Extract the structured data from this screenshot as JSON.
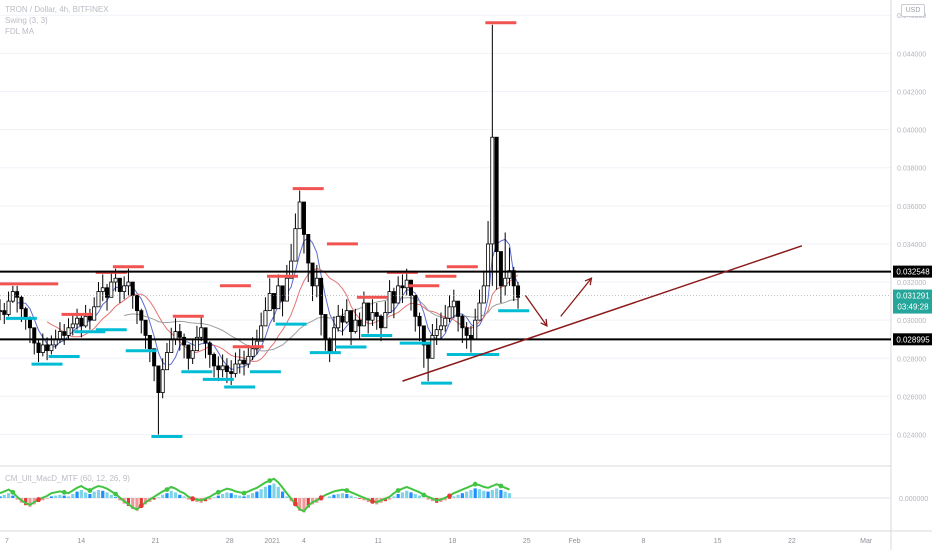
{
  "header": {
    "symbol_line": "TRON / Dollar, 4h, BITFINEX",
    "indicator_1": "Swing (3, 3)",
    "indicator_2": "FDL MA",
    "currency_button": "USD"
  },
  "oscillator": {
    "label": "CM_Ult_MacD_MTF (60, 12, 26, 9)",
    "zero_label": "0.000000"
  },
  "colors": {
    "candles": "#000000",
    "resistance_ticks": "#f05350",
    "support_ticks": "#00bcd4",
    "horizontal_levels": "#000000",
    "trendline": "#8b1a1a",
    "ma_short": "#5b6bd0",
    "ma_mid": "#e57373",
    "ma_long": "#9e9e9e",
    "current_price_bg": "#26a69a"
  },
  "chart_data": {
    "type": "candlestick",
    "x_ticks": [
      "7",
      "14",
      "21",
      "28",
      "2021",
      "4",
      "11",
      "18",
      "25",
      "Feb",
      "8",
      "15",
      "22",
      "Mar"
    ],
    "y_ticks": [
      0.024,
      0.026,
      0.028,
      0.03,
      0.032,
      0.034,
      0.036,
      0.038,
      0.04,
      0.042,
      0.044,
      0.046
    ],
    "y_tick_labels": [
      "0.024000",
      "0.026000",
      "0.028000",
      "0.030000",
      "0.032000",
      "0.034000",
      "0.036000",
      "0.038000",
      "0.040000",
      "0.042000",
      "0.044000",
      "0.046000"
    ],
    "ylim": [
      0.0224,
      0.0468
    ],
    "horizontal_levels": [
      {
        "price": 0.032548,
        "label": "0.032548"
      },
      {
        "price": 0.028995,
        "label": "0.028995"
      }
    ],
    "current_price": {
      "price": 0.031291,
      "label": "0.031291",
      "countdown": "03:49:28"
    },
    "closes": [
      0.0305,
      0.0303,
      0.031,
      0.0315,
      0.0312,
      0.0306,
      0.0301,
      0.0296,
      0.0288,
      0.0283,
      0.0287,
      0.0284,
      0.0287,
      0.029,
      0.0294,
      0.0292,
      0.0296,
      0.0298,
      0.0301,
      0.0297,
      0.0302,
      0.03,
      0.0307,
      0.0315,
      0.0317,
      0.0312,
      0.032,
      0.0322,
      0.0315,
      0.0318,
      0.032,
      0.0313,
      0.0305,
      0.03,
      0.0292,
      0.0285,
      0.0276,
      0.0262,
      0.0274,
      0.0283,
      0.029,
      0.0294,
      0.0291,
      0.0287,
      0.028,
      0.0284,
      0.0291,
      0.0296,
      0.0288,
      0.0282,
      0.0276,
      0.0274,
      0.0276,
      0.0273,
      0.0272,
      0.0277,
      0.0279,
      0.0277,
      0.0281,
      0.0285,
      0.0289,
      0.0297,
      0.0305,
      0.0314,
      0.0306,
      0.0318,
      0.031,
      0.0322,
      0.0331,
      0.0348,
      0.0362,
      0.0345,
      0.033,
      0.0318,
      0.0322,
      0.0303,
      0.029,
      0.0283,
      0.0296,
      0.0302,
      0.0299,
      0.0305,
      0.0294,
      0.03,
      0.0297,
      0.0309,
      0.03,
      0.0304,
      0.0302,
      0.0296,
      0.0304,
      0.0315,
      0.0309,
      0.0318,
      0.0317,
      0.0321,
      0.0313,
      0.0302,
      0.0297,
      0.0287,
      0.028,
      0.0292,
      0.0295,
      0.0297,
      0.0301,
      0.0307,
      0.031,
      0.0302,
      0.0296,
      0.0292,
      0.029,
      0.03,
      0.0309,
      0.0318,
      0.034,
      0.0396,
      0.0336,
      0.0318,
      0.0322,
      0.0326,
      0.0318,
      0.0312
    ],
    "highs": [
      0.0311,
      0.0309,
      0.0315,
      0.0318,
      0.0318,
      0.0313,
      0.0307,
      0.0302,
      0.0294,
      0.029,
      0.0293,
      0.0291,
      0.0292,
      0.0295,
      0.0299,
      0.0298,
      0.0301,
      0.0303,
      0.0306,
      0.0303,
      0.0308,
      0.0306,
      0.0312,
      0.032,
      0.0324,
      0.0319,
      0.0325,
      0.0327,
      0.0322,
      0.0323,
      0.0327,
      0.032,
      0.0312,
      0.0306,
      0.0299,
      0.0292,
      0.0284,
      0.0272,
      0.028,
      0.0288,
      0.0296,
      0.0301,
      0.0298,
      0.0293,
      0.0287,
      0.029,
      0.0297,
      0.0302,
      0.0295,
      0.0289,
      0.0283,
      0.0281,
      0.0282,
      0.028,
      0.0279,
      0.0283,
      0.0285,
      0.0284,
      0.0287,
      0.0291,
      0.0295,
      0.0304,
      0.0312,
      0.0322,
      0.0314,
      0.0324,
      0.0317,
      0.0329,
      0.034,
      0.0356,
      0.0368,
      0.0353,
      0.0338,
      0.0326,
      0.0329,
      0.031,
      0.0298,
      0.0291,
      0.0302,
      0.0308,
      0.0306,
      0.0311,
      0.0301,
      0.0306,
      0.0304,
      0.0315,
      0.0307,
      0.0311,
      0.0309,
      0.0303,
      0.031,
      0.0321,
      0.0317,
      0.0323,
      0.0324,
      0.0327,
      0.032,
      0.0309,
      0.0304,
      0.0294,
      0.0288,
      0.0298,
      0.0301,
      0.0304,
      0.0308,
      0.0313,
      0.0316,
      0.0309,
      0.0303,
      0.0299,
      0.0297,
      0.0306,
      0.0316,
      0.0326,
      0.0352,
      0.0455,
      0.036,
      0.0329,
      0.0346,
      0.0338,
      0.0328,
      0.032
    ],
    "lows": [
      0.03,
      0.0298,
      0.0302,
      0.0309,
      0.0304,
      0.0299,
      0.0295,
      0.0288,
      0.0282,
      0.0278,
      0.0281,
      0.0279,
      0.0282,
      0.0285,
      0.0288,
      0.0287,
      0.029,
      0.0292,
      0.0295,
      0.0291,
      0.0296,
      0.0295,
      0.03,
      0.0308,
      0.031,
      0.0305,
      0.0313,
      0.0315,
      0.0309,
      0.0311,
      0.0313,
      0.0306,
      0.0298,
      0.0293,
      0.0285,
      0.0278,
      0.0268,
      0.024,
      0.0259,
      0.0274,
      0.0283,
      0.0287,
      0.0284,
      0.028,
      0.0274,
      0.0277,
      0.0284,
      0.0289,
      0.028,
      0.0275,
      0.027,
      0.0268,
      0.027,
      0.0267,
      0.0266,
      0.027,
      0.0272,
      0.0271,
      0.0275,
      0.0279,
      0.0282,
      0.029,
      0.0298,
      0.0305,
      0.0299,
      0.0309,
      0.0302,
      0.0314,
      0.0323,
      0.0338,
      0.0351,
      0.0335,
      0.032,
      0.031,
      0.0312,
      0.0292,
      0.0284,
      0.0278,
      0.0288,
      0.0294,
      0.0292,
      0.0298,
      0.0287,
      0.0293,
      0.029,
      0.03,
      0.0293,
      0.0297,
      0.0295,
      0.0289,
      0.0296,
      0.0306,
      0.0301,
      0.031,
      0.0309,
      0.0313,
      0.0305,
      0.0294,
      0.0289,
      0.0275,
      0.0268,
      0.0283,
      0.0287,
      0.029,
      0.0294,
      0.0299,
      0.0301,
      0.0294,
      0.0288,
      0.0285,
      0.0283,
      0.0291,
      0.0301,
      0.031,
      0.032,
      0.0318,
      0.0316,
      0.0309,
      0.0313,
      0.0318,
      0.031,
      0.0306
    ],
    "resistance_ticks": [
      {
        "i": 1,
        "price": 0.0318
      },
      {
        "i": 8,
        "price": 0.0318
      },
      {
        "i": 16,
        "price": 0.0302
      },
      {
        "i": 24,
        "price": 0.0324
      },
      {
        "i": 28,
        "price": 0.0327
      },
      {
        "i": 42,
        "price": 0.0301
      },
      {
        "i": 53,
        "price": 0.0317
      },
      {
        "i": 56,
        "price": 0.0285
      },
      {
        "i": 64,
        "price": 0.0322
      },
      {
        "i": 70,
        "price": 0.0368
      },
      {
        "i": 78,
        "price": 0.0339
      },
      {
        "i": 85,
        "price": 0.0311
      },
      {
        "i": 92,
        "price": 0.0324
      },
      {
        "i": 97,
        "price": 0.0317
      },
      {
        "i": 101,
        "price": 0.0322
      },
      {
        "i": 106,
        "price": 0.0327
      },
      {
        "i": 115,
        "price": 0.0455
      }
    ],
    "support_ticks": [
      {
        "i": 3,
        "price": 0.0302
      },
      {
        "i": 9,
        "price": 0.0278
      },
      {
        "i": 13,
        "price": 0.0282
      },
      {
        "i": 19,
        "price": 0.0295
      },
      {
        "i": 24,
        "price": 0.0296
      },
      {
        "i": 31,
        "price": 0.0285
      },
      {
        "i": 37,
        "price": 0.024
      },
      {
        "i": 44,
        "price": 0.0274
      },
      {
        "i": 49,
        "price": 0.027
      },
      {
        "i": 54,
        "price": 0.0266
      },
      {
        "i": 60,
        "price": 0.0274
      },
      {
        "i": 66,
        "price": 0.0299
      },
      {
        "i": 74,
        "price": 0.0284
      },
      {
        "i": 80,
        "price": 0.0287
      },
      {
        "i": 86,
        "price": 0.0293
      },
      {
        "i": 95,
        "price": 0.0289
      },
      {
        "i": 100,
        "price": 0.0268
      },
      {
        "i": 106,
        "price": 0.0283
      },
      {
        "i": 111,
        "price": 0.0283
      },
      {
        "i": 118,
        "price": 0.0306
      }
    ],
    "trendline": {
      "x1_day": 26.2,
      "p1": 0.0268,
      "x2_day": 52.2,
      "p2": 0.0339
    },
    "projection_arrows": [
      {
        "from_day": 34.2,
        "from_p": 0.0313,
        "to_day": 35.6,
        "to_p": 0.0297
      },
      {
        "from_day": 36.5,
        "from_p": 0.0302,
        "to_day": 38.5,
        "to_p": 0.0322
      }
    ],
    "x_range_days": [
      0,
      58
    ],
    "macd_histogram": [
      0.2,
      0.4,
      0.6,
      0.3,
      -0.2,
      -0.6,
      -0.9,
      -1.1,
      -0.8,
      -0.5,
      -0.3,
      -0.1,
      0.2,
      0.3,
      0.4,
      0.3,
      0.2,
      0.5,
      0.8,
      1.0,
      0.7,
      0.5,
      0.8,
      1.0,
      0.9,
      0.7,
      0.4,
      0.1,
      -0.3,
      -0.7,
      -1.0,
      -1.4,
      -1.6,
      -1.2,
      -0.8,
      -0.5,
      -0.2,
      0.1,
      0.4,
      0.6,
      0.9,
      0.7,
      0.4,
      0.2,
      -0.2,
      -0.4,
      -0.5,
      -0.6,
      -0.4,
      -0.2,
      0.1,
      0.3,
      0.5,
      0.7,
      0.6,
      0.4,
      0.3,
      0.2,
      0.4,
      0.6,
      0.8,
      1.1,
      1.4,
      1.6,
      1.8,
      1.4,
      0.8,
      0.2,
      -0.4,
      -1.0,
      -1.6,
      -1.8,
      -1.2,
      -0.8,
      -0.6,
      -0.3,
      0.0,
      0.2,
      0.4,
      0.5,
      0.6,
      0.5,
      0.3,
      0.1,
      -0.1,
      -0.3,
      -0.5,
      -0.7,
      -0.8,
      -0.6,
      -0.4,
      -0.2,
      0.2,
      0.5,
      0.7,
      0.9,
      0.7,
      0.5,
      0.3,
      0.0,
      -0.2,
      -0.4,
      -0.6,
      -0.5,
      -0.3,
      -0.1,
      0.2,
      0.4,
      0.6,
      0.8,
      1.0,
      1.2,
      1.1,
      0.9,
      0.8,
      1.0,
      1.2,
      1.0,
      0.8,
      0.6
    ]
  }
}
